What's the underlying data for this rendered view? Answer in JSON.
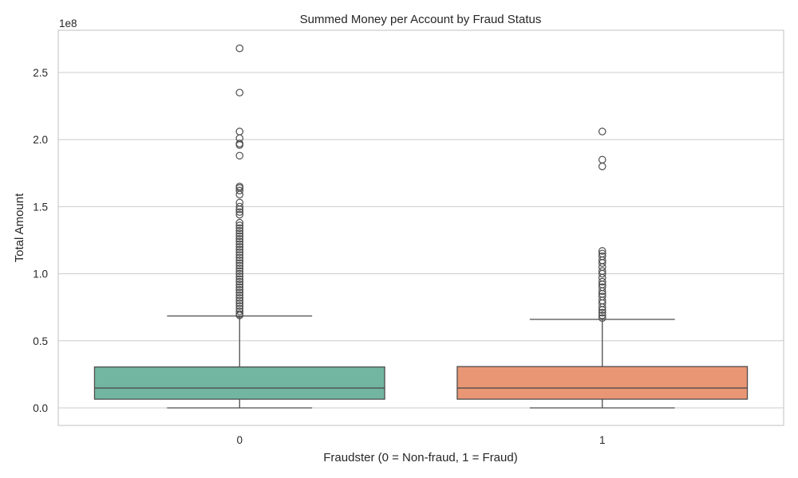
{
  "chart_data": {
    "type": "box",
    "title": "Summed Money per Account by Fraud Status",
    "xlabel": "Fraudster (0 = Non-fraud, 1 = Fraud)",
    "ylabel": "Total Amount",
    "offset_text": "1e8",
    "ylim": [
      -0.13,
      2.8
    ],
    "yticks": [
      0.0,
      0.5,
      1.0,
      1.5,
      2.0,
      2.5
    ],
    "ytick_labels": [
      "0.0",
      "0.5",
      "1.0",
      "1.5",
      "2.0",
      "2.5"
    ],
    "grid": true,
    "categories": [
      "0",
      "1"
    ],
    "boxes": [
      {
        "category": "0",
        "color": "#72b6a1",
        "whisker_low": 0.0,
        "q1": 0.065,
        "median": 0.148,
        "q3": 0.305,
        "whisker_high": 0.685,
        "fliers": [
          2.68,
          2.35,
          2.06,
          2.01,
          1.97,
          1.96,
          1.88,
          1.65,
          1.64,
          1.62,
          1.59,
          1.53,
          1.5,
          1.48,
          1.46,
          1.44,
          1.38,
          1.36,
          1.34,
          1.32,
          1.3,
          1.28,
          1.26,
          1.24,
          1.22,
          1.2,
          1.18,
          1.16,
          1.14,
          1.12,
          1.1,
          1.08,
          1.06,
          1.04,
          1.02,
          1.0,
          0.98,
          0.96,
          0.94,
          0.92,
          0.9,
          0.88,
          0.86,
          0.84,
          0.82,
          0.8,
          0.78,
          0.76,
          0.74,
          0.72,
          0.7,
          0.69
        ]
      },
      {
        "category": "1",
        "color": "#e99675",
        "whisker_low": 0.0,
        "q1": 0.065,
        "median": 0.148,
        "q3": 0.308,
        "whisker_high": 0.66,
        "fliers": [
          2.06,
          1.85,
          1.8,
          1.17,
          1.15,
          1.13,
          1.1,
          1.08,
          1.05,
          1.02,
          1.0,
          0.97,
          0.94,
          0.92,
          0.9,
          0.87,
          0.85,
          0.83,
          0.8,
          0.78,
          0.75,
          0.73,
          0.71,
          0.69,
          0.67
        ]
      }
    ]
  }
}
